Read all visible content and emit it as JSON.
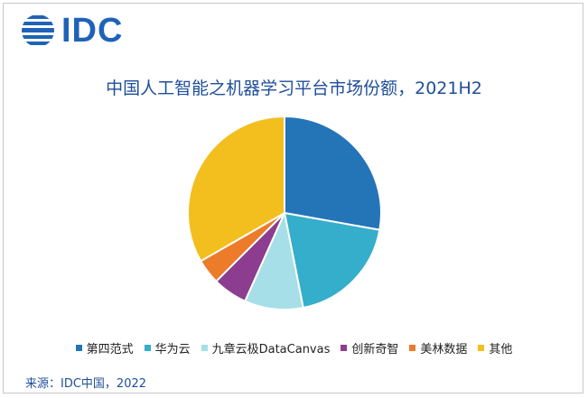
{
  "brand": {
    "logo_text": "IDC"
  },
  "chart_data": {
    "type": "pie",
    "title": "中国人工智能之机器学习平台市场份额，2021H2",
    "slices": [
      {
        "label": "第四范式",
        "value": 27.8,
        "color": "#2474b8"
      },
      {
        "label": "华为云",
        "value": 19.1,
        "color": "#34aecb"
      },
      {
        "label": "九章云极DataCanvas",
        "value": 9.8,
        "color": "#a6dfe8"
      },
      {
        "label": "创新奇智",
        "value": 5.8,
        "color": "#8c3d8f"
      },
      {
        "label": "美林数据",
        "value": 4.2,
        "color": "#ec7b2a"
      },
      {
        "label": "其他",
        "value": 33.3,
        "color": "#f2bf1e"
      }
    ],
    "legend_position": "bottom"
  },
  "footer": {
    "source": "来源：IDC中国，2022"
  }
}
